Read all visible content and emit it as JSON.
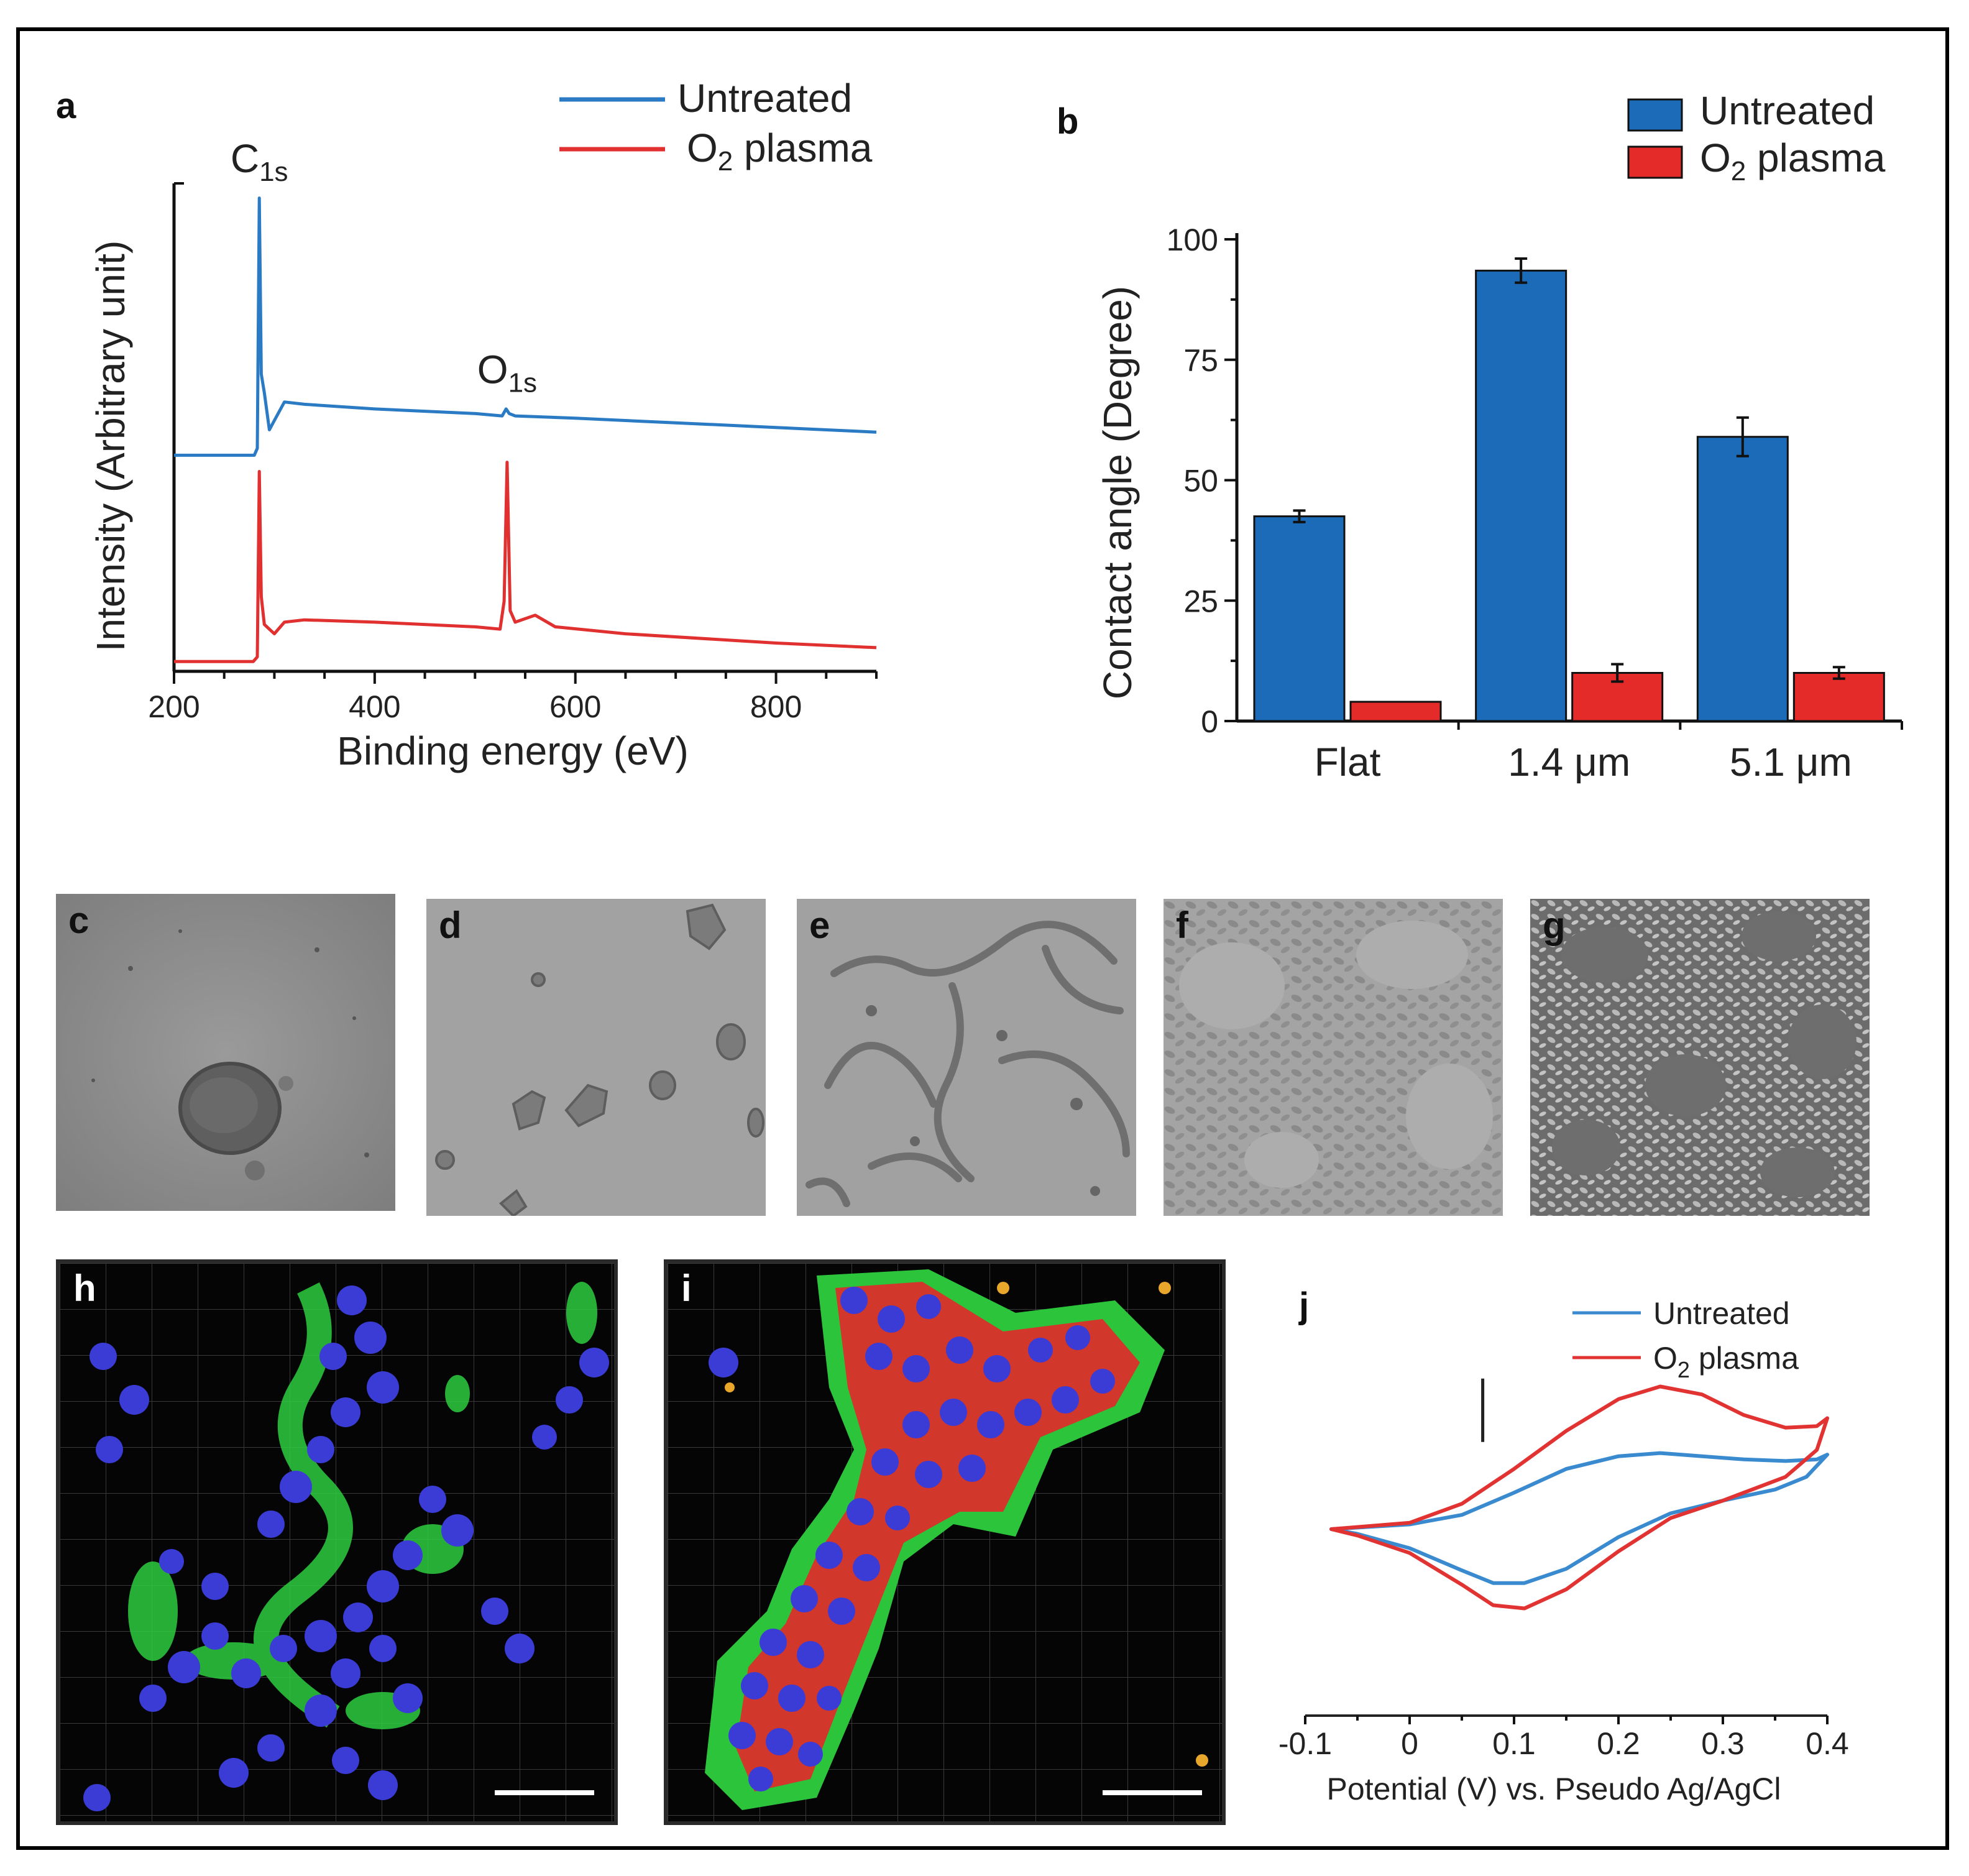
{
  "figure": {
    "panel_labels": {
      "a": "a",
      "b": "b",
      "c": "c",
      "d": "d",
      "e": "e",
      "f": "f",
      "g": "g",
      "h": "h",
      "i": "i",
      "j": "j"
    }
  },
  "chart_data": [
    {
      "id": "a",
      "type": "line",
      "title": "",
      "xlabel": "Binding energy (eV)",
      "ylabel": "Intensity (Arbitrary unit)",
      "xlim": [
        200,
        900
      ],
      "xticks": [
        200,
        400,
        600,
        800
      ],
      "ylim": [
        0,
        1
      ],
      "legend": {
        "position": "top-right"
      },
      "annotations": [
        {
          "text": "C",
          "sub": "1s",
          "x": 285
        },
        {
          "text": "O",
          "sub": "1s",
          "x": 532
        }
      ],
      "series": [
        {
          "name": "Untreated",
          "color": "#2a7bc4",
          "points": [
            [
              200,
              0.445
            ],
            [
              280,
              0.445
            ],
            [
              283,
              0.46
            ],
            [
              285,
              1.0
            ],
            [
              287,
              0.62
            ],
            [
              290,
              0.58
            ],
            [
              295,
              0.5
            ],
            [
              300,
              0.52
            ],
            [
              310,
              0.56
            ],
            [
              330,
              0.555
            ],
            [
              400,
              0.545
            ],
            [
              500,
              0.535
            ],
            [
              527,
              0.53
            ],
            [
              531,
              0.545
            ],
            [
              534,
              0.535
            ],
            [
              540,
              0.53
            ],
            [
              600,
              0.525
            ],
            [
              700,
              0.515
            ],
            [
              800,
              0.505
            ],
            [
              900,
              0.495
            ]
          ]
        },
        {
          "name": "O2 plasma",
          "label": "O",
          "label_sub": "2",
          "label_tail": " plasma",
          "color": "#e03030",
          "points": [
            [
              200,
              0.0
            ],
            [
              279,
              0.0
            ],
            [
              283,
              0.01
            ],
            [
              285,
              0.41
            ],
            [
              287,
              0.14
            ],
            [
              290,
              0.08
            ],
            [
              300,
              0.06
            ],
            [
              310,
              0.085
            ],
            [
              330,
              0.09
            ],
            [
              400,
              0.085
            ],
            [
              500,
              0.075
            ],
            [
              525,
              0.07
            ],
            [
              529,
              0.13
            ],
            [
              532,
              0.43
            ],
            [
              535,
              0.11
            ],
            [
              540,
              0.085
            ],
            [
              560,
              0.1
            ],
            [
              580,
              0.075
            ],
            [
              650,
              0.06
            ],
            [
              800,
              0.04
            ],
            [
              900,
              0.03
            ]
          ]
        }
      ]
    },
    {
      "id": "b",
      "type": "bar",
      "title": "",
      "xlabel": "",
      "ylabel": "Contact angle (Degree)",
      "ylim": [
        0,
        100
      ],
      "yticks": [
        0,
        25,
        50,
        75,
        100
      ],
      "categories": [
        "Flat",
        "1.4 μm",
        "5.1 μm"
      ],
      "legend": {
        "position": "top-right"
      },
      "series": [
        {
          "name": "Untreated",
          "color": "#1c6bb8",
          "values": [
            42.5,
            93.5,
            59
          ],
          "errors": [
            1.2,
            2.5,
            4.0
          ]
        },
        {
          "name": "O2 plasma",
          "label": "O",
          "label_sub": "2",
          "label_tail": " plasma",
          "color": "#e52a2a",
          "values": [
            4,
            10,
            10
          ],
          "errors": [
            0,
            1.8,
            1.2
          ]
        }
      ]
    },
    {
      "id": "j",
      "type": "line",
      "title": "",
      "xlabel": "Potential (V) vs. Pseudo Ag/AgCl",
      "ylabel": "",
      "xlim": [
        -0.1,
        0.4
      ],
      "xticks": [
        -0.1,
        0,
        0.1,
        0.2,
        0.3,
        0.4
      ],
      "xticklabels": [
        "-0.1",
        "0",
        "0.1",
        "0.2",
        "0.3",
        "0.4"
      ],
      "ylim": [
        -1.0,
        1.0
      ],
      "legend": {
        "position": "top-right"
      },
      "scale_bar": true,
      "series": [
        {
          "name": "Untreated",
          "color": "#3a8ad0",
          "points": [
            [
              -0.075,
              0.0
            ],
            [
              0.0,
              0.03
            ],
            [
              0.05,
              0.09
            ],
            [
              0.1,
              0.23
            ],
            [
              0.15,
              0.38
            ],
            [
              0.2,
              0.46
            ],
            [
              0.24,
              0.48
            ],
            [
              0.28,
              0.46
            ],
            [
              0.32,
              0.44
            ],
            [
              0.36,
              0.43
            ],
            [
              0.39,
              0.44
            ],
            [
              0.4,
              0.47
            ],
            [
              0.38,
              0.33
            ],
            [
              0.35,
              0.25
            ],
            [
              0.3,
              0.18
            ],
            [
              0.25,
              0.1
            ],
            [
              0.2,
              -0.05
            ],
            [
              0.15,
              -0.25
            ],
            [
              0.11,
              -0.34
            ],
            [
              0.08,
              -0.34
            ],
            [
              0.05,
              -0.26
            ],
            [
              0.0,
              -0.12
            ],
            [
              -0.05,
              -0.03
            ],
            [
              -0.075,
              0.0
            ]
          ]
        },
        {
          "name": "O2 plasma",
          "label": "O",
          "label_sub": "2",
          "label_tail": " plasma",
          "color": "#e23333",
          "points": [
            [
              -0.075,
              0.0
            ],
            [
              0.0,
              0.04
            ],
            [
              0.05,
              0.16
            ],
            [
              0.1,
              0.38
            ],
            [
              0.15,
              0.62
            ],
            [
              0.2,
              0.82
            ],
            [
              0.24,
              0.9
            ],
            [
              0.28,
              0.85
            ],
            [
              0.32,
              0.72
            ],
            [
              0.36,
              0.64
            ],
            [
              0.39,
              0.65
            ],
            [
              0.4,
              0.7
            ],
            [
              0.39,
              0.5
            ],
            [
              0.36,
              0.33
            ],
            [
              0.3,
              0.18
            ],
            [
              0.25,
              0.07
            ],
            [
              0.2,
              -0.14
            ],
            [
              0.15,
              -0.38
            ],
            [
              0.11,
              -0.5
            ],
            [
              0.08,
              -0.48
            ],
            [
              0.05,
              -0.35
            ],
            [
              0.0,
              -0.15
            ],
            [
              -0.05,
              -0.04
            ],
            [
              -0.075,
              0.0
            ]
          ]
        }
      ]
    }
  ]
}
